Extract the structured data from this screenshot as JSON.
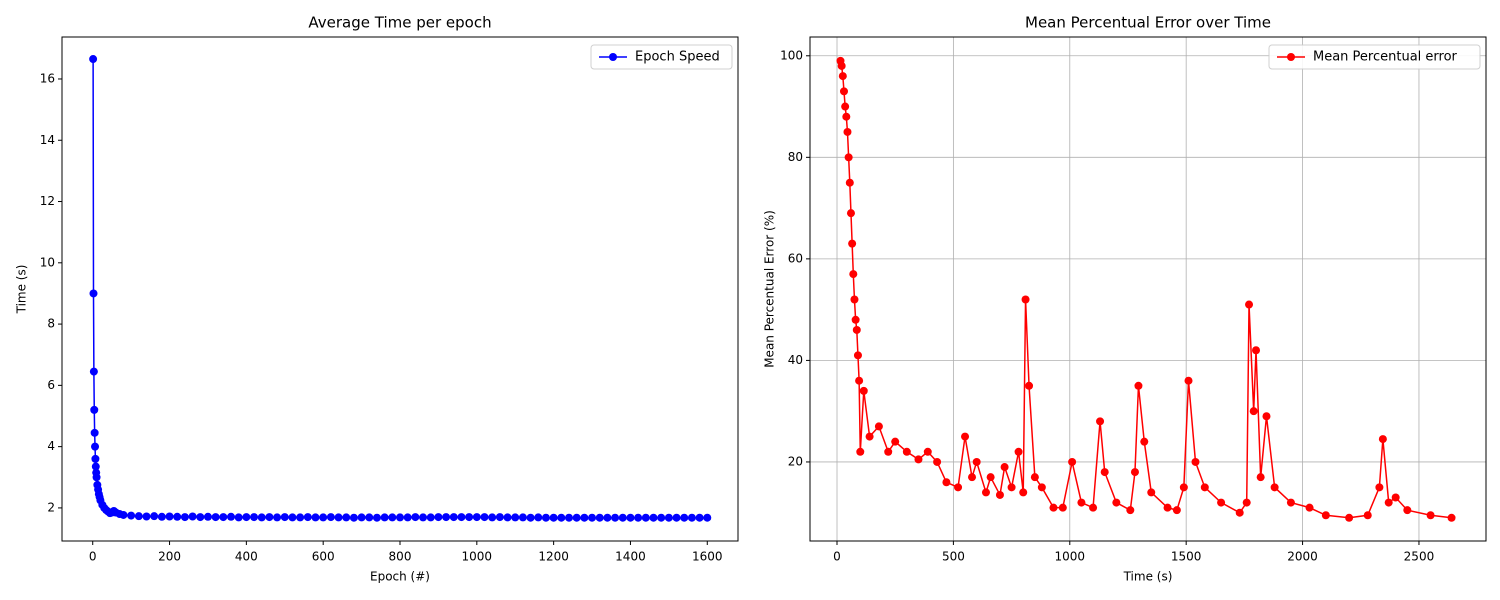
{
  "chart_data": [
    {
      "type": "line",
      "title": "Average Time per epoch",
      "xlabel": "Epoch (#)",
      "ylabel": "Time (s)",
      "xlim": [
        -80,
        1680
      ],
      "ylim": [
        0.92,
        17.37
      ],
      "xticks": [
        0,
        200,
        400,
        600,
        800,
        1000,
        1200,
        1400,
        1600
      ],
      "yticks": [
        2,
        4,
        6,
        8,
        10,
        12,
        14,
        16
      ],
      "grid": false,
      "legend": "upper right",
      "x": [
        1,
        2,
        3,
        4,
        5,
        6,
        7,
        8,
        9,
        10,
        12,
        14,
        16,
        18,
        20,
        25,
        30,
        35,
        40,
        45,
        50,
        55,
        60,
        70,
        80,
        100,
        120,
        140,
        160,
        180,
        200,
        220,
        240,
        260,
        280,
        300,
        320,
        340,
        360,
        380,
        400,
        420,
        440,
        460,
        480,
        500,
        520,
        540,
        560,
        580,
        600,
        620,
        640,
        660,
        680,
        700,
        720,
        740,
        760,
        780,
        800,
        820,
        840,
        860,
        880,
        900,
        920,
        940,
        960,
        980,
        1000,
        1020,
        1040,
        1060,
        1080,
        1100,
        1120,
        1140,
        1160,
        1180,
        1200,
        1220,
        1240,
        1260,
        1280,
        1300,
        1320,
        1340,
        1360,
        1380,
        1400,
        1420,
        1440,
        1460,
        1480,
        1500,
        1520,
        1540,
        1560,
        1580,
        1600
      ],
      "series": [
        {
          "name": "Epoch Speed",
          "color": "#0000ff",
          "values": [
            16.65,
            9.0,
            6.45,
            5.2,
            4.45,
            4.0,
            3.6,
            3.35,
            3.15,
            3.0,
            2.75,
            2.6,
            2.45,
            2.35,
            2.25,
            2.1,
            2.0,
            1.93,
            1.88,
            1.83,
            1.85,
            1.9,
            1.85,
            1.8,
            1.77,
            1.75,
            1.73,
            1.72,
            1.73,
            1.71,
            1.72,
            1.71,
            1.7,
            1.72,
            1.7,
            1.71,
            1.7,
            1.7,
            1.71,
            1.69,
            1.7,
            1.7,
            1.69,
            1.7,
            1.69,
            1.7,
            1.69,
            1.69,
            1.7,
            1.69,
            1.69,
            1.7,
            1.69,
            1.69,
            1.68,
            1.69,
            1.69,
            1.68,
            1.69,
            1.69,
            1.69,
            1.69,
            1.7,
            1.69,
            1.69,
            1.7,
            1.7,
            1.7,
            1.7,
            1.7,
            1.7,
            1.7,
            1.69,
            1.7,
            1.69,
            1.69,
            1.69,
            1.68,
            1.69,
            1.68,
            1.68,
            1.68,
            1.68,
            1.68,
            1.68,
            1.68,
            1.68,
            1.68,
            1.68,
            1.68,
            1.68,
            1.68,
            1.68,
            1.68,
            1.68,
            1.68,
            1.68,
            1.68,
            1.68,
            1.68,
            1.68
          ]
        }
      ]
    },
    {
      "type": "line",
      "title": "Mean Percentual Error over Time",
      "xlabel": "Time (s)",
      "ylabel": "Mean Percentual Error (%)",
      "xlim": [
        -116,
        2788
      ],
      "ylim": [
        4.43,
        103.7
      ],
      "xticks": [
        0,
        500,
        1000,
        1500,
        2000,
        2500
      ],
      "yticks": [
        20,
        40,
        60,
        80,
        100
      ],
      "grid": true,
      "legend": "upper right",
      "x": [
        15,
        20,
        25,
        30,
        35,
        40,
        45,
        50,
        55,
        60,
        65,
        70,
        75,
        80,
        85,
        90,
        95,
        100,
        115,
        140,
        180,
        220,
        250,
        300,
        350,
        390,
        430,
        470,
        520,
        550,
        580,
        600,
        640,
        660,
        700,
        720,
        750,
        780,
        800,
        810,
        825,
        850,
        880,
        930,
        970,
        1010,
        1050,
        1100,
        1130,
        1150,
        1200,
        1260,
        1280,
        1295,
        1320,
        1350,
        1420,
        1460,
        1490,
        1510,
        1540,
        1580,
        1650,
        1730,
        1760,
        1770,
        1790,
        1800,
        1820,
        1845,
        1880,
        1950,
        2030,
        2100,
        2200,
        2280,
        2330,
        2345,
        2370,
        2400,
        2450,
        2550,
        2640
      ],
      "series": [
        {
          "name": "Mean Percentual error",
          "color": "#ff0000",
          "values": [
            99,
            98,
            96,
            93,
            90,
            88,
            85,
            80,
            75,
            69,
            63,
            57,
            52,
            48,
            46,
            41,
            36,
            22,
            34,
            25,
            27,
            22,
            24,
            22,
            20.5,
            22,
            20,
            16,
            15,
            25,
            17,
            20,
            14,
            17,
            13.5,
            19,
            15,
            22,
            14,
            52,
            35,
            17,
            15,
            11,
            11,
            20,
            12,
            11,
            28,
            18,
            12,
            10.5,
            18,
            35,
            24,
            14,
            11,
            10.5,
            15,
            36,
            20,
            15,
            12,
            10,
            12,
            51,
            30,
            42,
            17,
            29,
            15,
            12,
            11,
            9.5,
            9,
            9.5,
            15,
            24.5,
            12,
            13,
            10.5,
            9.5,
            9
          ]
        }
      ]
    }
  ]
}
